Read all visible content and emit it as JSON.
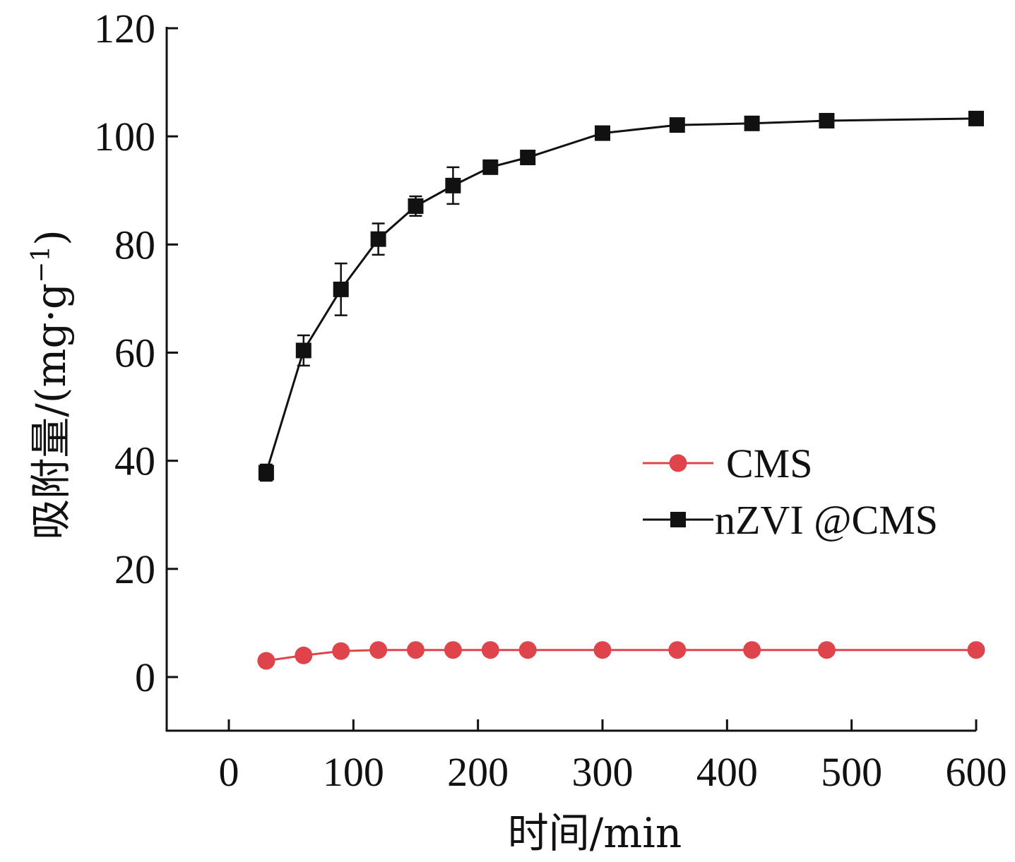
{
  "chart_data": {
    "type": "line",
    "xlabel": "时间/min",
    "ylabel_main": "吸附量/(mg·g",
    "ylabel_sup": "−1",
    "ylabel_close": ")",
    "xlim": [
      -50,
      600
    ],
    "ylim": [
      -10,
      120
    ],
    "xticks": [
      0,
      100,
      200,
      300,
      400,
      500,
      600
    ],
    "yticks": [
      0,
      20,
      40,
      60,
      80,
      100,
      120
    ],
    "grid": false,
    "legend_position": "right-middle",
    "series": [
      {
        "name": "CMS",
        "color": "#e0444b",
        "marker": "circle",
        "x": [
          30,
          60,
          90,
          120,
          150,
          180,
          210,
          240,
          300,
          360,
          420,
          480,
          600
        ],
        "y": [
          3.0,
          4.0,
          4.8,
          5.0,
          5.0,
          5.0,
          5.0,
          5.0,
          5.0,
          5.0,
          5.0,
          5.0,
          5.0
        ]
      },
      {
        "name": "nZVI @CMS",
        "color": "#111111",
        "marker": "square",
        "x": [
          30,
          60,
          90,
          120,
          150,
          180,
          210,
          240,
          300,
          360,
          420,
          480,
          600
        ],
        "y": [
          37.8,
          60.4,
          71.7,
          81.0,
          87.1,
          90.9,
          94.3,
          96.1,
          100.6,
          102.1,
          102.4,
          102.9,
          103.3
        ],
        "error": [
          1.5,
          2.8,
          4.8,
          2.9,
          1.8,
          3.4,
          0.6,
          0.5,
          0.4,
          0.4,
          0.3,
          0.4,
          0.3
        ]
      }
    ]
  }
}
